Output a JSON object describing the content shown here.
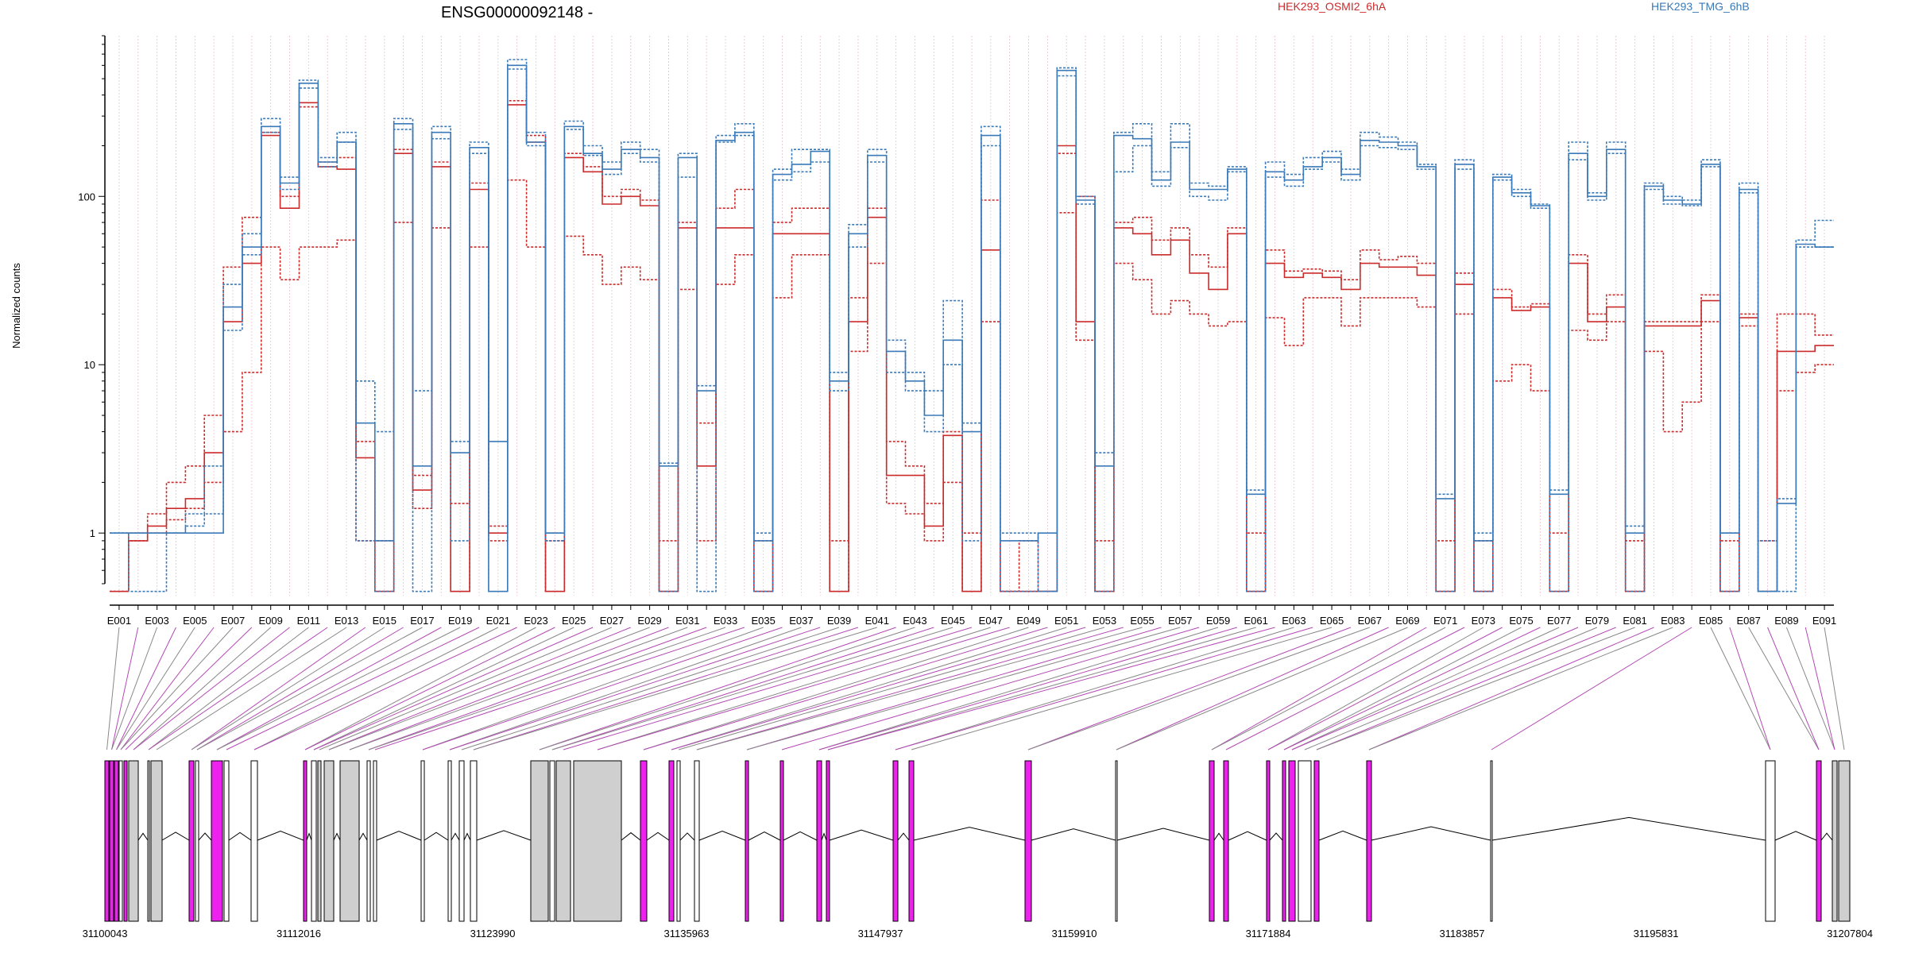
{
  "chart_data": {
    "type": "line",
    "title": "ENSG00000092148 -",
    "ylabel": "Normalized counts",
    "yscale": "log",
    "ylim": [
      0.5,
      900
    ],
    "yticks": [
      1,
      10,
      100
    ],
    "grid": "vertical dashed",
    "legend_placement": "top-right",
    "categories": [
      "E001",
      "E002",
      "E003",
      "E004",
      "E005",
      "E006",
      "E007",
      "E008",
      "E009",
      "E010",
      "E011",
      "E012",
      "E013",
      "E014",
      "E015",
      "E016",
      "E017",
      "E018",
      "E019",
      "E020",
      "E021",
      "E022",
      "E023",
      "E024",
      "E025",
      "E026",
      "E027",
      "E028",
      "E029",
      "E030",
      "E031",
      "E032",
      "E033",
      "E034",
      "E035",
      "E036",
      "E037",
      "E038",
      "E039",
      "E040",
      "E041",
      "E042",
      "E043",
      "E044",
      "E045",
      "E046",
      "E047",
      "E048",
      "E049",
      "E050",
      "E051",
      "E052",
      "E053",
      "E054",
      "E055",
      "E056",
      "E057",
      "E058",
      "E059",
      "E060",
      "E061",
      "E062",
      "E063",
      "E064",
      "E065",
      "E066",
      "E067",
      "E068",
      "E069",
      "E070",
      "E071",
      "E072",
      "E073",
      "E074",
      "E075",
      "E076",
      "E077",
      "E078",
      "E079",
      "E080",
      "E081",
      "E082",
      "E083",
      "E084",
      "E085",
      "E086",
      "E087",
      "E088",
      "E089",
      "E090",
      "E091"
    ],
    "xtick_labels": [
      "E001",
      "E003",
      "E005",
      "E007",
      "E009",
      "E011",
      "E013",
      "E015",
      "E017",
      "E019",
      "E021",
      "E023",
      "E025",
      "E027",
      "E029",
      "E031",
      "E033",
      "E035",
      "E037",
      "E039",
      "E041",
      "E043",
      "E045",
      "E047",
      "E049",
      "E051",
      "E053",
      "E055",
      "E057",
      "E059",
      "E061",
      "E063",
      "E065",
      "E067",
      "E069",
      "E071",
      "E073",
      "E075",
      "E077",
      "E079",
      "E081",
      "E083",
      "E085",
      "E087",
      "E089",
      "E091"
    ],
    "series": [
      {
        "name": "HEK293_OSMI2_6hA",
        "color": "#cc2b2b",
        "style": "solid",
        "values": [
          0.45,
          0.9,
          1.1,
          1.4,
          1.6,
          3,
          18,
          40,
          230,
          85,
          360,
          150,
          145,
          2.8,
          0.45,
          180,
          1.8,
          150,
          0.45,
          110,
          1,
          350,
          210,
          0.45,
          170,
          140,
          90,
          100,
          88,
          0.45,
          65,
          2.5,
          65,
          65,
          0.45,
          60,
          60,
          60,
          0.45,
          18,
          75,
          2.2,
          2.2,
          1.1,
          3.8,
          0.45,
          48,
          0.45,
          0.45,
          0.45,
          200,
          18,
          0.45,
          65,
          60,
          45,
          55,
          35,
          28,
          60,
          0.45,
          40,
          33,
          35,
          33,
          28,
          40,
          38,
          38,
          34,
          0.45,
          30,
          0.45,
          25,
          21,
          22,
          0.45,
          40,
          18,
          22,
          0.45,
          17,
          17,
          17,
          24,
          0.45,
          19,
          0.45,
          12,
          12,
          13
        ]
      },
      {
        "name": "HEK293_OSMI2_6hA",
        "color": "#cc2b2b",
        "style": "dotted",
        "values": [
          0.45,
          1,
          1.3,
          2,
          2.5,
          5,
          38,
          75,
          240,
          100,
          340,
          160,
          170,
          3.5,
          0.9,
          190,
          2.2,
          160,
          1.5,
          120,
          1.1,
          370,
          230,
          0.9,
          180,
          150,
          100,
          110,
          95,
          0.9,
          70,
          4.5,
          85,
          110,
          0.9,
          70,
          85,
          85,
          0.9,
          25,
          85,
          3.5,
          2.5,
          1.5,
          4,
          1,
          95,
          0.45,
          0.9,
          0.45,
          180,
          100,
          0.9,
          70,
          75,
          55,
          65,
          45,
          38,
          65,
          1,
          48,
          36,
          37,
          36,
          32,
          48,
          42,
          44,
          40,
          0.9,
          35,
          0.9,
          28,
          22,
          23,
          1,
          45,
          20,
          26,
          0.9,
          18,
          18,
          18,
          26,
          0.9,
          20,
          0.9,
          20,
          20,
          15
        ]
      },
      {
        "name": "HEK293_OSMI2_6hA",
        "color": "#cc2b2b",
        "style": "dotted",
        "values": [
          0.45,
          0.9,
          1,
          1.2,
          1.4,
          2,
          4,
          9,
          50,
          32,
          50,
          50,
          55,
          0.9,
          0.45,
          70,
          1.4,
          65,
          0.45,
          50,
          0.9,
          125,
          50,
          0.45,
          58,
          45,
          30,
          38,
          32,
          0.45,
          28,
          0.9,
          30,
          45,
          0.45,
          25,
          45,
          45,
          0.45,
          12,
          40,
          1.5,
          1.3,
          0.9,
          2,
          0.45,
          18,
          0.45,
          0.45,
          0.45,
          80,
          14,
          0.45,
          40,
          32,
          20,
          24,
          20,
          17,
          18,
          0.45,
          19,
          13,
          25,
          25,
          17,
          25,
          25,
          25,
          22,
          0.45,
          20,
          0.45,
          8,
          10,
          7,
          0.45,
          16,
          14,
          18,
          0.45,
          12,
          4,
          6,
          18,
          0.45,
          17,
          0.45,
          7,
          9,
          10
        ]
      },
      {
        "name": "HEK293_TMG_6hB",
        "color": "#3a7ab8",
        "style": "solid",
        "values": [
          1,
          1,
          1,
          1,
          1,
          1,
          22,
          50,
          260,
          120,
          470,
          160,
          210,
          4.5,
          0.9,
          270,
          2.5,
          240,
          3,
          195,
          3.5,
          600,
          210,
          1,
          260,
          180,
          145,
          190,
          170,
          2.5,
          170,
          7,
          215,
          240,
          0.9,
          135,
          155,
          185,
          8,
          60,
          175,
          12,
          8,
          5,
          14,
          4,
          230,
          0.9,
          0.9,
          1,
          560,
          95,
          2.5,
          230,
          220,
          125,
          210,
          110,
          110,
          145,
          1.7,
          140,
          125,
          150,
          170,
          135,
          215,
          210,
          200,
          150,
          1.6,
          155,
          0.9,
          130,
          105,
          88,
          1.7,
          180,
          100,
          190,
          1,
          115,
          95,
          90,
          155,
          1,
          110,
          0.45,
          1.5,
          52,
          50
        ]
      },
      {
        "name": "HEK293_TMG_6hB",
        "color": "#3a7ab8",
        "style": "dotted",
        "values": [
          1,
          1,
          1,
          1,
          1.1,
          1.3,
          30,
          60,
          290,
          130,
          490,
          170,
          240,
          8,
          4,
          290,
          7,
          260,
          3.5,
          210,
          0.45,
          650,
          240,
          1,
          280,
          200,
          160,
          210,
          190,
          2.6,
          180,
          7.5,
          230,
          270,
          1,
          145,
          190,
          190,
          9,
          68,
          190,
          14,
          9,
          7,
          24,
          4.5,
          260,
          1,
          1,
          0.45,
          580,
          100,
          3,
          240,
          270,
          140,
          270,
          120,
          115,
          150,
          1.8,
          160,
          135,
          170,
          185,
          145,
          240,
          225,
          210,
          155,
          1.7,
          165,
          1,
          135,
          110,
          90,
          1.8,
          210,
          105,
          210,
          1.1,
          120,
          100,
          95,
          165,
          1,
          120,
          0.9,
          1.6,
          55,
          72
        ]
      },
      {
        "name": "HEK293_TMG_6hB",
        "color": "#3a7ab8",
        "style": "dotted",
        "values": [
          1,
          0.45,
          0.45,
          1,
          1.3,
          2.5,
          16,
          45,
          240,
          110,
          440,
          150,
          210,
          0.9,
          0.45,
          250,
          0.45,
          220,
          0.9,
          180,
          0.45,
          570,
          200,
          0.9,
          250,
          175,
          135,
          180,
          160,
          0.45,
          130,
          0.45,
          210,
          230,
          0.45,
          125,
          140,
          160,
          7,
          50,
          160,
          9,
          7,
          4,
          10,
          0.9,
          200,
          0.45,
          0.45,
          0.45,
          520,
          90,
          0.45,
          140,
          200,
          115,
          195,
          100,
          95,
          140,
          0.45,
          130,
          115,
          145,
          160,
          125,
          200,
          195,
          190,
          145,
          0.45,
          145,
          0.45,
          125,
          100,
          85,
          0.45,
          165,
          95,
          180,
          0.45,
          110,
          90,
          88,
          150,
          0.45,
          105,
          0.45,
          0.45,
          50,
          50
        ]
      }
    ],
    "legend": [
      {
        "label": "HEK293_OSMI2_6hA",
        "color": "#cc2b2b"
      },
      {
        "label": "HEK293_TMG_6hB",
        "color": "#3a7ab8"
      }
    ],
    "genomic_axis_labels": [
      "31100043",
      "31112016",
      "31123990",
      "31135963",
      "31147937",
      "31159910",
      "31171884",
      "31183857",
      "31195831",
      "31207804"
    ]
  }
}
